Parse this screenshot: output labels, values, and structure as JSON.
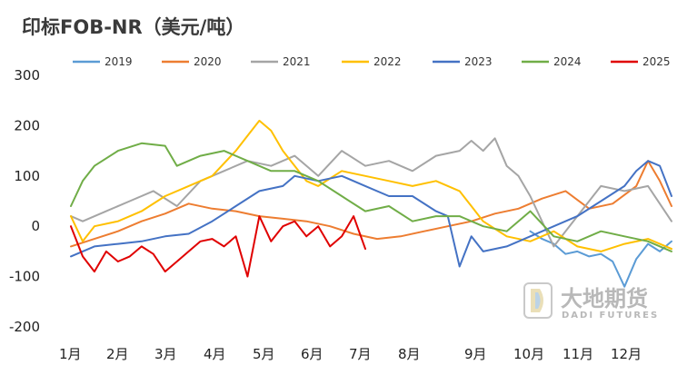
{
  "chart_data": {
    "type": "line",
    "title": "印标FOB-NR（美元/吨）",
    "xlabel": "",
    "ylabel": "",
    "ylim": [
      -200,
      300
    ],
    "yticks": [
      300,
      200,
      100,
      0,
      -100,
      -200
    ],
    "grid": false,
    "legend_position": "top",
    "x_categories": [
      "1月",
      "2月",
      "3月",
      "4月",
      "5月",
      "6月",
      "7月",
      "8月",
      "9月",
      "10月",
      "11月",
      "12月"
    ],
    "x_unit": "week_of_year",
    "series": [
      {
        "name": "2019",
        "color": "#5b9bd5",
        "x": [
          40,
          41,
          42,
          43,
          44,
          45,
          46,
          47,
          48,
          49,
          50,
          51,
          52
        ],
        "y": [
          -10,
          -25,
          -35,
          -55,
          -50,
          -60,
          -55,
          -70,
          -120,
          -65,
          -35,
          -50,
          -30
        ]
      },
      {
        "name": "2020",
        "color": "#ed7d31",
        "x": [
          1,
          3,
          5,
          7,
          9,
          11,
          13,
          15,
          17,
          19,
          21,
          23,
          25,
          27,
          29,
          31,
          33,
          35,
          37,
          39,
          41,
          43,
          45,
          47,
          49,
          50,
          51,
          52
        ],
        "y": [
          -40,
          -25,
          -10,
          10,
          25,
          45,
          35,
          30,
          20,
          15,
          10,
          0,
          -15,
          -25,
          -20,
          -10,
          0,
          10,
          25,
          35,
          55,
          70,
          35,
          45,
          80,
          130,
          90,
          40
        ]
      },
      {
        "name": "2021",
        "color": "#a5a5a5",
        "x": [
          1,
          2,
          4,
          6,
          8,
          10,
          12,
          14,
          16,
          18,
          20,
          22,
          24,
          26,
          28,
          30,
          32,
          34,
          35,
          36,
          37,
          38,
          39,
          40,
          42,
          44,
          46,
          48,
          50,
          52
        ],
        "y": [
          20,
          10,
          30,
          50,
          70,
          40,
          90,
          110,
          130,
          120,
          140,
          100,
          150,
          120,
          130,
          110,
          140,
          150,
          170,
          150,
          175,
          120,
          100,
          60,
          -40,
          20,
          80,
          70,
          80,
          10
        ]
      },
      {
        "name": "2022",
        "color": "#ffc000",
        "x": [
          1,
          2,
          3,
          5,
          7,
          9,
          11,
          13,
          15,
          16,
          17,
          18,
          19,
          20,
          21,
          22,
          24,
          26,
          28,
          30,
          32,
          34,
          35,
          36,
          38,
          40,
          42,
          44,
          46,
          48,
          50,
          52
        ],
        "y": [
          20,
          -30,
          0,
          10,
          30,
          60,
          80,
          100,
          150,
          180,
          210,
          190,
          150,
          120,
          90,
          80,
          110,
          100,
          90,
          80,
          90,
          70,
          40,
          10,
          -20,
          -30,
          -10,
          -40,
          -50,
          -35,
          -25,
          -45
        ]
      },
      {
        "name": "2023",
        "color": "#4472c4",
        "x": [
          1,
          3,
          5,
          7,
          9,
          11,
          13,
          15,
          17,
          19,
          20,
          22,
          24,
          26,
          28,
          30,
          32,
          33,
          34,
          35,
          36,
          38,
          40,
          42,
          44,
          46,
          48,
          49,
          50,
          51,
          52
        ],
        "y": [
          -60,
          -40,
          -35,
          -30,
          -20,
          -15,
          10,
          40,
          70,
          80,
          100,
          90,
          100,
          80,
          60,
          60,
          30,
          20,
          -80,
          -20,
          -50,
          -40,
          -20,
          0,
          20,
          50,
          80,
          110,
          130,
          120,
          60
        ]
      },
      {
        "name": "2024",
        "color": "#70ad47",
        "x": [
          1,
          2,
          3,
          5,
          7,
          9,
          10,
          12,
          14,
          16,
          18,
          20,
          22,
          24,
          26,
          28,
          30,
          32,
          34,
          36,
          38,
          40,
          42,
          44,
          46,
          48,
          50,
          52
        ],
        "y": [
          40,
          90,
          120,
          150,
          165,
          160,
          120,
          140,
          150,
          130,
          110,
          110,
          90,
          60,
          30,
          40,
          10,
          20,
          20,
          0,
          -10,
          30,
          -20,
          -30,
          -10,
          -20,
          -30,
          -50
        ]
      },
      {
        "name": "2025",
        "color": "#e00000",
        "x": [
          1,
          2,
          3,
          4,
          5,
          6,
          7,
          8,
          9,
          10,
          11,
          12,
          13,
          14,
          15,
          16,
          17,
          18,
          19,
          20,
          21,
          22,
          23,
          24,
          25,
          26
        ],
        "y": [
          0,
          -60,
          -90,
          -50,
          -70,
          -60,
          -40,
          -55,
          -90,
          -70,
          -50,
          -30,
          -25,
          -40,
          -20,
          -100,
          20,
          -30,
          0,
          10,
          -20,
          0,
          -40,
          -20,
          20,
          -45
        ]
      }
    ]
  },
  "watermark": {
    "name_cn": "大地期货",
    "name_en": "DADI FUTURES",
    "logo_letter": "D"
  }
}
